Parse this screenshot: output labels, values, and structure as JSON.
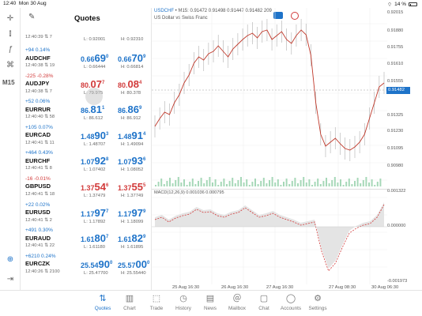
{
  "status": {
    "time": "12:40",
    "date": "Mon 30 Aug",
    "battery": "14 %"
  },
  "rail": {
    "timeframe": "M15"
  },
  "quotes": {
    "title": "Quotes",
    "rows": [
      {
        "time": "12:40:39",
        "spread": "7",
        "low": "L: 0.92001",
        "high": "H: 0.92310"
      },
      {
        "change": "+94 0.14%",
        "dir": "up",
        "symbol": "AUDCHF",
        "time": "12:40:38",
        "spread": "19",
        "bid_a": "0.66",
        "bid_b": "69",
        "bid_c": "0",
        "ask_a": "0.66",
        "ask_b": "70",
        "ask_c": "9",
        "low": "L: 0.66444",
        "high": "H: 0.66814"
      },
      {
        "change": "-225 -0.28%",
        "dir": "dn",
        "symbol": "AUDJPY",
        "time": "12:40:38",
        "spread": "7",
        "bid_a": "80.",
        "bid_b": "07",
        "bid_c": "7",
        "ask_a": "80.",
        "ask_b": "08",
        "ask_c": "4",
        "low": "L: 79.975",
        "high": "H: 80.378"
      },
      {
        "change": "+52 0.06%",
        "dir": "up",
        "symbol": "EURRUR",
        "time": "12:40:40",
        "spread": "58",
        "bid_a": "86.",
        "bid_b": "81",
        "bid_c": "1",
        "ask_a": "86.",
        "ask_b": "86",
        "ask_c": "9",
        "low": "L: 86.612",
        "high": "H: 86.912"
      },
      {
        "change": "+105 0.07%",
        "dir": "up",
        "symbol": "EURCAD",
        "time": "12:40:41",
        "spread": "11",
        "bid_a": "1.48",
        "bid_b": "90",
        "bid_c": "3",
        "ask_a": "1.48",
        "ask_b": "91",
        "ask_c": "4",
        "low": "L: 1.48707",
        "high": "H: 1.49094"
      },
      {
        "change": "+464 0.43%",
        "dir": "up",
        "symbol": "EURCHF",
        "time": "12:40:41",
        "spread": "8",
        "bid_a": "1.07",
        "bid_b": "92",
        "bid_c": "8",
        "ask_a": "1.07",
        "ask_b": "93",
        "ask_c": "6",
        "low": "L: 1.07402",
        "high": "H: 1.08052"
      },
      {
        "change": "-16 -0.01%",
        "dir": "dn",
        "symbol": "GBPUSD",
        "time": "12:40:41",
        "spread": "18",
        "bid_a": "1.37",
        "bid_b": "54",
        "bid_c": "6",
        "ask_a": "1.37",
        "ask_b": "55",
        "ask_c": "5",
        "low": "L: 1.37479",
        "high": "H: 1.37749"
      },
      {
        "change": "+22 0.02%",
        "dir": "up",
        "symbol": "EURUSD",
        "time": "12:40:41",
        "spread": "2",
        "bid_a": "1.17",
        "bid_b": "97",
        "bid_c": "7",
        "ask_a": "1.17",
        "ask_b": "97",
        "ask_c": "9",
        "low": "L: 1.17892",
        "high": "H: 1.18099"
      },
      {
        "change": "+491 0.30%",
        "dir": "up",
        "symbol": "EURAUD",
        "time": "12:40:41",
        "spread": "22",
        "bid_a": "1.61",
        "bid_b": "80",
        "bid_c": "7",
        "ask_a": "1.61",
        "ask_b": "82",
        "ask_c": "9",
        "low": "L: 1.61180",
        "high": "H: 1.61895"
      },
      {
        "change": "+6210 0.24%",
        "dir": "up",
        "symbol": "EURCZK",
        "time": "12:40:26",
        "spread": "2100",
        "bid_a": "25.54",
        "bid_b": "90",
        "bid_c": "0",
        "ask_a": "25.57",
        "ask_b": "00",
        "ask_c": "0",
        "low": "L: 25.47700",
        "high": "H: 25.55440"
      }
    ]
  },
  "chart": {
    "symbol": "USDCHF",
    "info": "• M15: 0.91472 0.91498 0.91447 0.91482 209",
    "description": "US Dollar vs Swiss Franc",
    "current_price": "0.91482",
    "price_axis": [
      "0.92015",
      "0.91880",
      "0.91755",
      "0.91610",
      "0.91555",
      "0.91325",
      "0.91230",
      "0.91095",
      "0.90980"
    ],
    "macd_label": "MACD(12,26,9) 0.001036 0.000795",
    "macd_axis": [
      "0.001322",
      "0.000000",
      "-0.001973"
    ],
    "x_labels": [
      "25 Aug 16:30",
      "26 Aug 16:30",
      "27 Aug 16:30",
      "27 Aug 08:30",
      "30 Aug 06:30"
    ]
  },
  "chart_data": {
    "type": "line",
    "title": "USDCHF",
    "x": [
      "25 Aug 16:30",
      "26 Aug 16:30",
      "27 Aug 16:30",
      "27 Aug 08:30",
      "30 Aug 06:30"
    ],
    "series": [],
    "ylim": [
      0.9098,
      0.92015
    ],
    "grid": true
  },
  "tabs": [
    {
      "label": "Quotes",
      "icon": "arrows-icon",
      "active": true
    },
    {
      "label": "Chart",
      "icon": "chart-icon"
    },
    {
      "label": "Trade",
      "icon": "trade-icon"
    },
    {
      "label": "History",
      "icon": "history-icon"
    },
    {
      "label": "News",
      "icon": "news-icon"
    },
    {
      "label": "Mailbox",
      "icon": "mailbox-icon"
    },
    {
      "label": "Chat",
      "icon": "chat-icon"
    },
    {
      "label": "Accounts",
      "icon": "accounts-icon"
    },
    {
      "label": "Settings",
      "icon": "settings-icon"
    }
  ]
}
